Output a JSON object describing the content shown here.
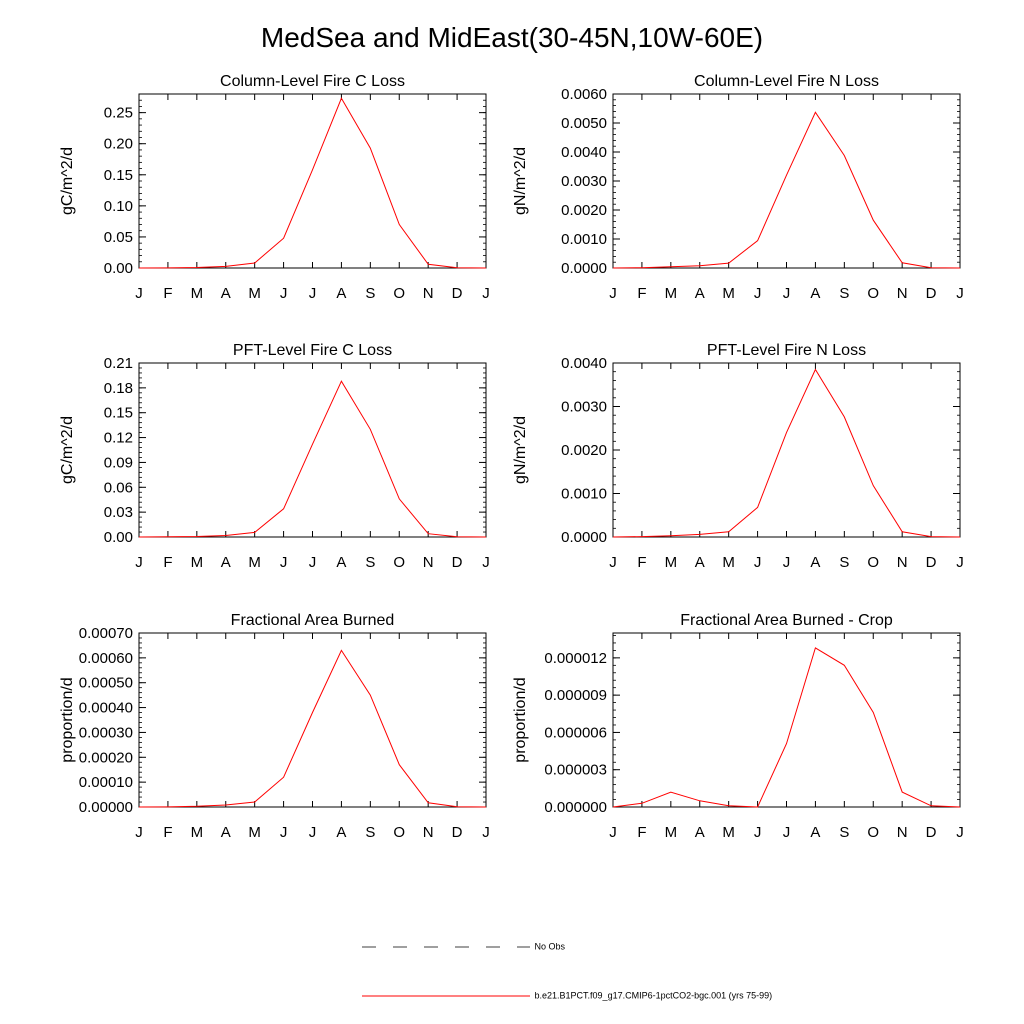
{
  "title": "MedSea and MidEast(30-45N,10W-60E)",
  "months": [
    "J",
    "F",
    "M",
    "A",
    "M",
    "J",
    "J",
    "A",
    "S",
    "O",
    "N",
    "D",
    "J"
  ],
  "colors": {
    "model": "#ff0000",
    "obs": "#000000"
  },
  "legend": {
    "obs_label": "No Obs",
    "model_label": "b.e21.B1PCT.f09_g17.CMIP6-1pctCO2-bgc.001 (yrs 75-99)"
  },
  "chart_data": [
    {
      "type": "line",
      "title": "Column-Level Fire C Loss",
      "ylabel": "gC/m^2/d",
      "ylim": [
        0,
        0.28
      ],
      "yticks": [
        "0.00",
        "0.05",
        "0.10",
        "0.15",
        "0.20",
        "0.25"
      ],
      "values": [
        0.0,
        0.0002,
        0.0008,
        0.0025,
        0.008,
        0.048,
        0.158,
        0.273,
        0.193,
        0.07,
        0.006,
        0.0003,
        0.0
      ]
    },
    {
      "type": "line",
      "title": "Column-Level Fire N Loss",
      "ylabel": "gN/m^2/d",
      "ylim": [
        0,
        0.006
      ],
      "yticks": [
        "0.0000",
        "0.0010",
        "0.0020",
        "0.0030",
        "0.0040",
        "0.0050",
        "0.0060"
      ],
      "values": [
        0.0,
        1e-05,
        4e-05,
        8e-05,
        0.00017,
        0.00094,
        0.0032,
        0.00537,
        0.00388,
        0.00165,
        0.00018,
        1e-05,
        0.0
      ]
    },
    {
      "type": "line",
      "title": "PFT-Level Fire C Loss",
      "ylabel": "gC/m^2/d",
      "ylim": [
        0,
        0.21
      ],
      "yticks": [
        "0.00",
        "0.03",
        "0.06",
        "0.09",
        "0.12",
        "0.15",
        "0.18",
        "0.21"
      ],
      "values": [
        0.0,
        0.0002,
        0.0006,
        0.0018,
        0.0055,
        0.034,
        0.112,
        0.188,
        0.13,
        0.046,
        0.004,
        0.0002,
        0.0
      ]
    },
    {
      "type": "line",
      "title": "PFT-Level Fire N Loss",
      "ylabel": "gN/m^2/d",
      "ylim": [
        0,
        0.004
      ],
      "yticks": [
        "0.0000",
        "0.0010",
        "0.0020",
        "0.0030",
        "0.0040"
      ],
      "values": [
        0.0,
        1e-05,
        3e-05,
        6e-05,
        0.00012,
        0.00068,
        0.0024,
        0.00385,
        0.00276,
        0.00118,
        0.00012,
        1e-05,
        0.0
      ]
    },
    {
      "type": "line",
      "title": "Fractional Area Burned",
      "ylabel": "proportion/d",
      "ylim": [
        0,
        0.0007
      ],
      "yticks": [
        "0.00000",
        "0.00010",
        "0.00020",
        "0.00030",
        "0.00040",
        "0.00050",
        "0.00060",
        "0.00070"
      ],
      "values": [
        0.0,
        5e-07,
        3e-06,
        8e-06,
        2e-05,
        0.00012,
        0.00038,
        0.00063,
        0.00045,
        0.00017,
        1.7e-05,
        8e-07,
        0.0
      ]
    },
    {
      "type": "line",
      "title": "Fractional Area Burned - Crop",
      "ylabel": "proportion/d",
      "ylim": [
        0,
        1.4e-05
      ],
      "yticks": [
        "0.000000",
        "0.000003",
        "0.000006",
        "0.000009",
        "0.000012"
      ],
      "values": [
        0.0,
        3e-07,
        1.2e-06,
        5e-07,
        1e-07,
        0.0,
        5.1e-06,
        1.28e-05,
        1.14e-05,
        7.6e-06,
        1.2e-06,
        1e-07,
        0.0
      ]
    }
  ]
}
